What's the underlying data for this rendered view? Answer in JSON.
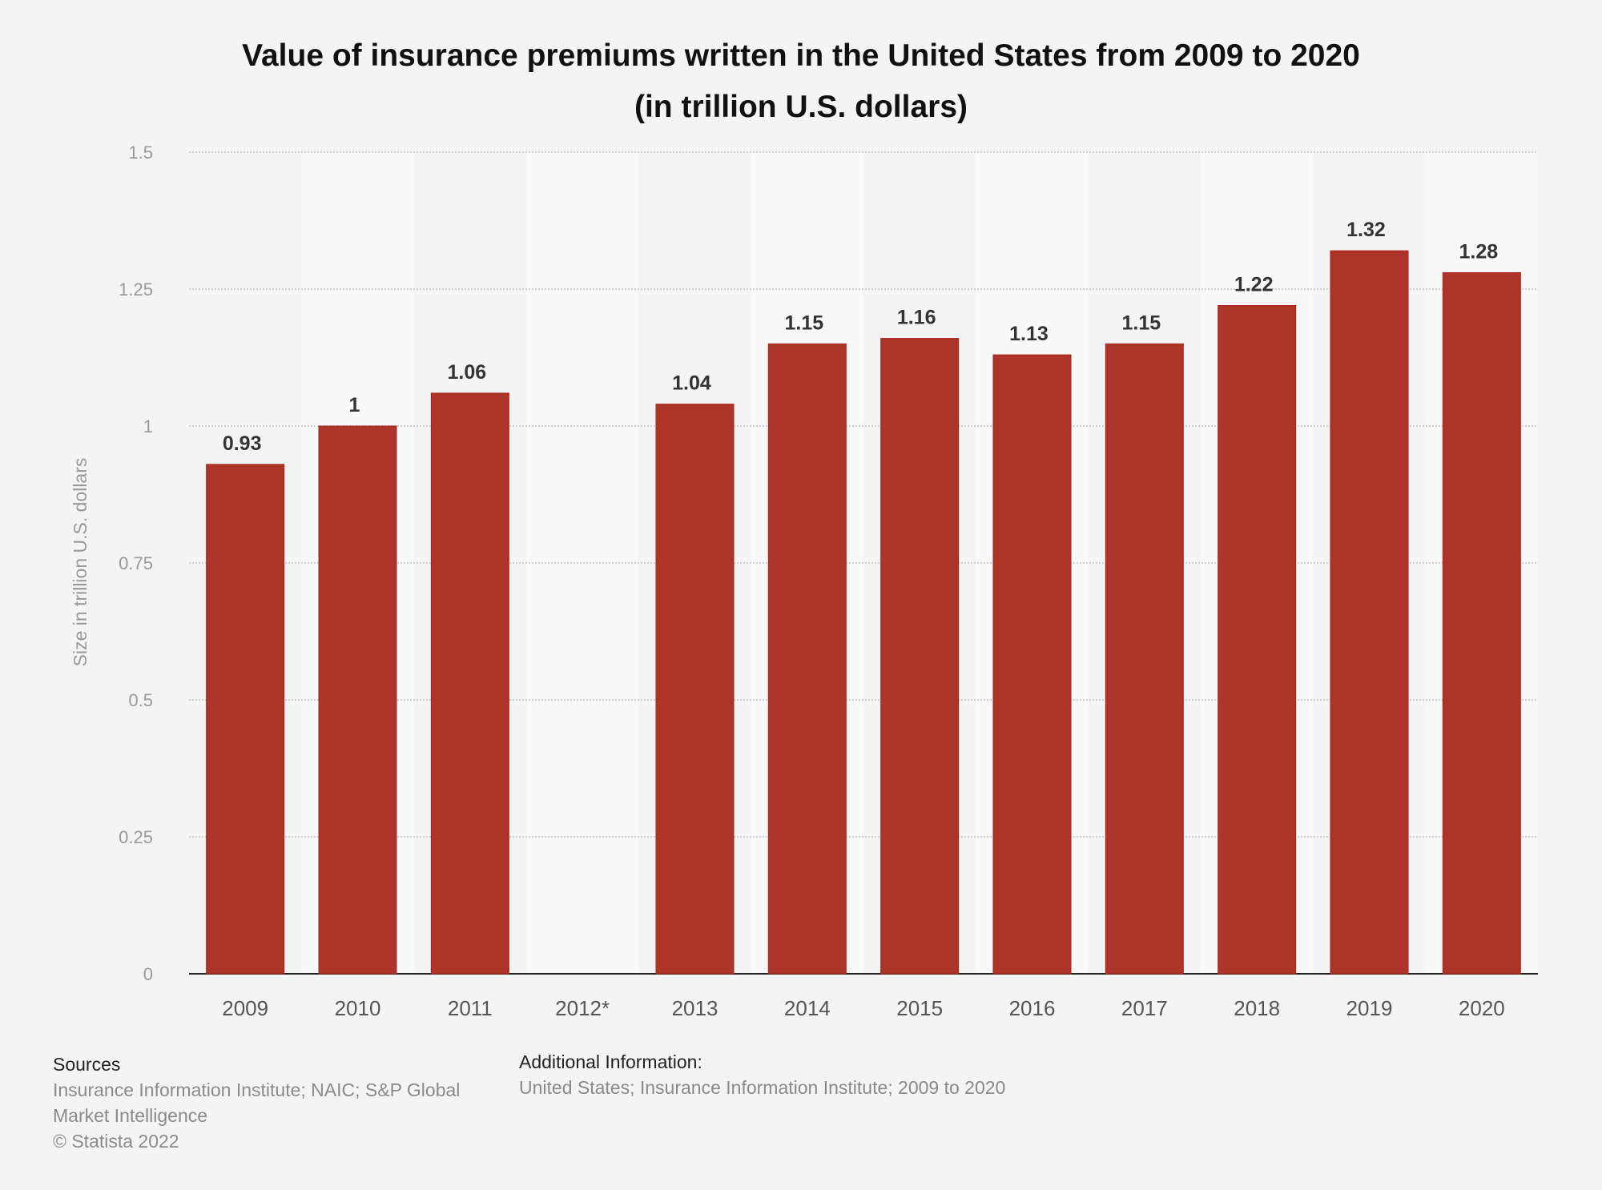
{
  "chart_data": {
    "type": "bar",
    "title": "Value of insurance premiums written in the United States from 2009 to 2020",
    "subtitle": "(in trillion U.S. dollars)",
    "ylabel": "Size in trillion U.S. dollars",
    "xlabel": "",
    "categories": [
      "2009",
      "2010",
      "2011",
      "2012*",
      "2013",
      "2014",
      "2015",
      "2016",
      "2017",
      "2018",
      "2019",
      "2020"
    ],
    "values": [
      0.93,
      1,
      1.06,
      null,
      1.04,
      1.15,
      1.16,
      1.13,
      1.15,
      1.22,
      1.32,
      1.28
    ],
    "data_labels": [
      "0.93",
      "1",
      "1.06",
      "",
      "1.04",
      "1.15",
      "1.16",
      "1.13",
      "1.15",
      "1.22",
      "1.32",
      "1.28"
    ],
    "ylim": [
      0,
      1.5
    ],
    "yticks": [
      0,
      0.25,
      0.5,
      0.75,
      1,
      1.25,
      1.5
    ],
    "ytick_labels": [
      "0",
      "0.25",
      "0.5",
      "0.75",
      "1",
      "1.25",
      "1.5"
    ],
    "grid": true,
    "legend": "none",
    "bar_color": "#ad3429"
  },
  "footer": {
    "sources_heading": "Sources",
    "sources_line1": "Insurance Information Institute; NAIC; S&P Global",
    "sources_line2": "Market Intelligence",
    "copyright": "© Statista 2022",
    "additional_heading": "Additional Information:",
    "additional_text": "United States; Insurance Information Institute; 2009 to 2020"
  }
}
